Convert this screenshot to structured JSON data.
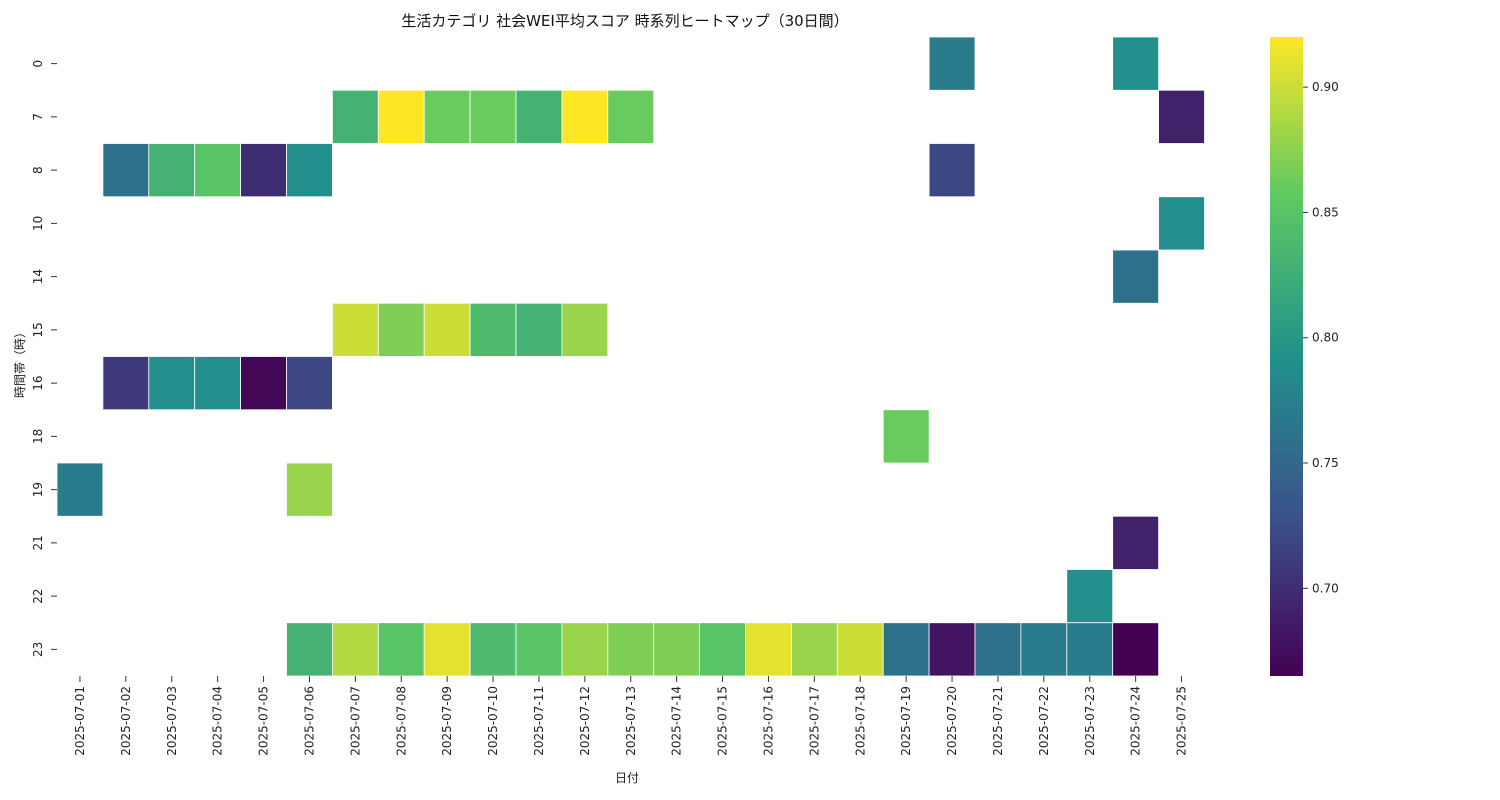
{
  "chart_data": {
    "type": "heatmap",
    "title": "生活カテゴリ 社会WEI平均スコア 時系列ヒートマップ（30日間）",
    "xlabel": "日付",
    "ylabel": "時間帯（時）",
    "colormap": "viridis",
    "grid": false,
    "legend": "colorbar-right",
    "x_categories": [
      "2025-07-01",
      "2025-07-02",
      "2025-07-03",
      "2025-07-04",
      "2025-07-05",
      "2025-07-06",
      "2025-07-07",
      "2025-07-08",
      "2025-07-09",
      "2025-07-10",
      "2025-07-11",
      "2025-07-12",
      "2025-07-13",
      "2025-07-14",
      "2025-07-15",
      "2025-07-16",
      "2025-07-17",
      "2025-07-18",
      "2025-07-19",
      "2025-07-20",
      "2025-07-21",
      "2025-07-22",
      "2025-07-23",
      "2025-07-24",
      "2025-07-25"
    ],
    "y_categories": [
      "0",
      "7",
      "8",
      "10",
      "14",
      "15",
      "16",
      "18",
      "19",
      "21",
      "22",
      "23"
    ],
    "colorbar": {
      "min": 0.665,
      "max": 0.92,
      "ticks": [
        0.7,
        0.75,
        0.8,
        0.85,
        0.9
      ],
      "tick_labels": [
        "0.70",
        "0.75",
        "0.80",
        "0.85",
        "0.90"
      ]
    },
    "cells": [
      {
        "x": "2025-07-20",
        "y": "0",
        "value": 0.77
      },
      {
        "x": "2025-07-24",
        "y": "0",
        "value": 0.79
      },
      {
        "x": "2025-07-07",
        "y": "7",
        "value": 0.83
      },
      {
        "x": "2025-07-08",
        "y": "7",
        "value": 0.92
      },
      {
        "x": "2025-07-09",
        "y": "7",
        "value": 0.86
      },
      {
        "x": "2025-07-10",
        "y": "7",
        "value": 0.86
      },
      {
        "x": "2025-07-11",
        "y": "7",
        "value": 0.83
      },
      {
        "x": "2025-07-12",
        "y": "7",
        "value": 0.92
      },
      {
        "x": "2025-07-13",
        "y": "7",
        "value": 0.86
      },
      {
        "x": "2025-07-25",
        "y": "7",
        "value": 0.69
      },
      {
        "x": "2025-07-02",
        "y": "8",
        "value": 0.76
      },
      {
        "x": "2025-07-03",
        "y": "8",
        "value": 0.83
      },
      {
        "x": "2025-07-04",
        "y": "8",
        "value": 0.85
      },
      {
        "x": "2025-07-05",
        "y": "8",
        "value": 0.7
      },
      {
        "x": "2025-07-06",
        "y": "8",
        "value": 0.79
      },
      {
        "x": "2025-07-20",
        "y": "8",
        "value": 0.72
      },
      {
        "x": "2025-07-25",
        "y": "10",
        "value": 0.79
      },
      {
        "x": "2025-07-24",
        "y": "14",
        "value": 0.76
      },
      {
        "x": "2025-07-07",
        "y": "15",
        "value": 0.9
      },
      {
        "x": "2025-07-08",
        "y": "15",
        "value": 0.87
      },
      {
        "x": "2025-07-09",
        "y": "15",
        "value": 0.9
      },
      {
        "x": "2025-07-10",
        "y": "15",
        "value": 0.84
      },
      {
        "x": "2025-07-11",
        "y": "15",
        "value": 0.83
      },
      {
        "x": "2025-07-12",
        "y": "15",
        "value": 0.88
      },
      {
        "x": "2025-07-02",
        "y": "16",
        "value": 0.71
      },
      {
        "x": "2025-07-03",
        "y": "16",
        "value": 0.79
      },
      {
        "x": "2025-07-04",
        "y": "16",
        "value": 0.79
      },
      {
        "x": "2025-07-05",
        "y": "16",
        "value": 0.67
      },
      {
        "x": "2025-07-06",
        "y": "16",
        "value": 0.72
      },
      {
        "x": "2025-07-19",
        "y": "18",
        "value": 0.86
      },
      {
        "x": "2025-07-01",
        "y": "19",
        "value": 0.77
      },
      {
        "x": "2025-07-06",
        "y": "19",
        "value": 0.88
      },
      {
        "x": "2025-07-24",
        "y": "21",
        "value": 0.69
      },
      {
        "x": "2025-07-23",
        "y": "22",
        "value": 0.79
      },
      {
        "x": "2025-07-06",
        "y": "23",
        "value": 0.83
      },
      {
        "x": "2025-07-07",
        "y": "23",
        "value": 0.89
      },
      {
        "x": "2025-07-08",
        "y": "23",
        "value": 0.85
      },
      {
        "x": "2025-07-09",
        "y": "23",
        "value": 0.91
      },
      {
        "x": "2025-07-10",
        "y": "23",
        "value": 0.84
      },
      {
        "x": "2025-07-11",
        "y": "23",
        "value": 0.85
      },
      {
        "x": "2025-07-12",
        "y": "23",
        "value": 0.88
      },
      {
        "x": "2025-07-13",
        "y": "23",
        "value": 0.87
      },
      {
        "x": "2025-07-14",
        "y": "23",
        "value": 0.87
      },
      {
        "x": "2025-07-15",
        "y": "23",
        "value": 0.85
      },
      {
        "x": "2025-07-16",
        "y": "23",
        "value": 0.91
      },
      {
        "x": "2025-07-17",
        "y": "23",
        "value": 0.88
      },
      {
        "x": "2025-07-18",
        "y": "23",
        "value": 0.9
      },
      {
        "x": "2025-07-19",
        "y": "23",
        "value": 0.76
      },
      {
        "x": "2025-07-20",
        "y": "23",
        "value": 0.68
      },
      {
        "x": "2025-07-21",
        "y": "23",
        "value": 0.76
      },
      {
        "x": "2025-07-22",
        "y": "23",
        "value": 0.77
      },
      {
        "x": "2025-07-23",
        "y": "23",
        "value": 0.77
      },
      {
        "x": "2025-07-24",
        "y": "23",
        "value": 0.665
      }
    ]
  }
}
